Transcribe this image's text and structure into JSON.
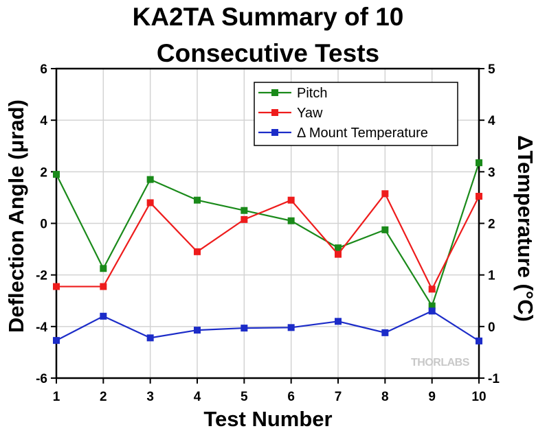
{
  "chart_data": {
    "type": "line",
    "title_lines": [
      "KA2TA Summary of 10",
      "Consecutive Tests"
    ],
    "xlabel": "Test Number",
    "ylabel": "Deflection Angle (μrad)",
    "y2label": "ΔTemperature (°C)",
    "x": [
      1,
      2,
      3,
      4,
      5,
      6,
      7,
      8,
      9,
      10
    ],
    "xlim": [
      1,
      10
    ],
    "ylim": [
      -6,
      6
    ],
    "y2lim": [
      -1,
      5
    ],
    "x_ticks": [
      "1",
      "2",
      "3",
      "4",
      "5",
      "6",
      "7",
      "8",
      "9",
      "10"
    ],
    "y_ticks": [
      "6",
      "4",
      "2",
      "0",
      "-2",
      "-4",
      "-6"
    ],
    "y2_ticks": [
      "5",
      "4",
      "3",
      "2",
      "1",
      "0",
      "-1"
    ],
    "grid": true,
    "legend_position": "top-right",
    "series": [
      {
        "name": "Pitch",
        "axis": "left",
        "color": "#1a8a1a",
        "values": [
          1.9,
          -1.75,
          1.7,
          0.9,
          0.5,
          0.1,
          -0.95,
          -0.25,
          -3.2,
          2.35
        ]
      },
      {
        "name": "Yaw",
        "axis": "left",
        "color": "#ee1c1c",
        "values": [
          -2.45,
          -2.45,
          0.8,
          -1.1,
          0.15,
          0.9,
          -1.2,
          1.15,
          -2.55,
          1.05
        ]
      },
      {
        "name": "Δ Mount Temperature",
        "axis": "right",
        "color": "#1c2cc8",
        "values": [
          -0.27,
          0.2,
          -0.22,
          -0.07,
          -0.03,
          -0.02,
          0.1,
          -0.12,
          0.3,
          -0.28
        ]
      }
    ],
    "watermark": "THORLABS"
  }
}
